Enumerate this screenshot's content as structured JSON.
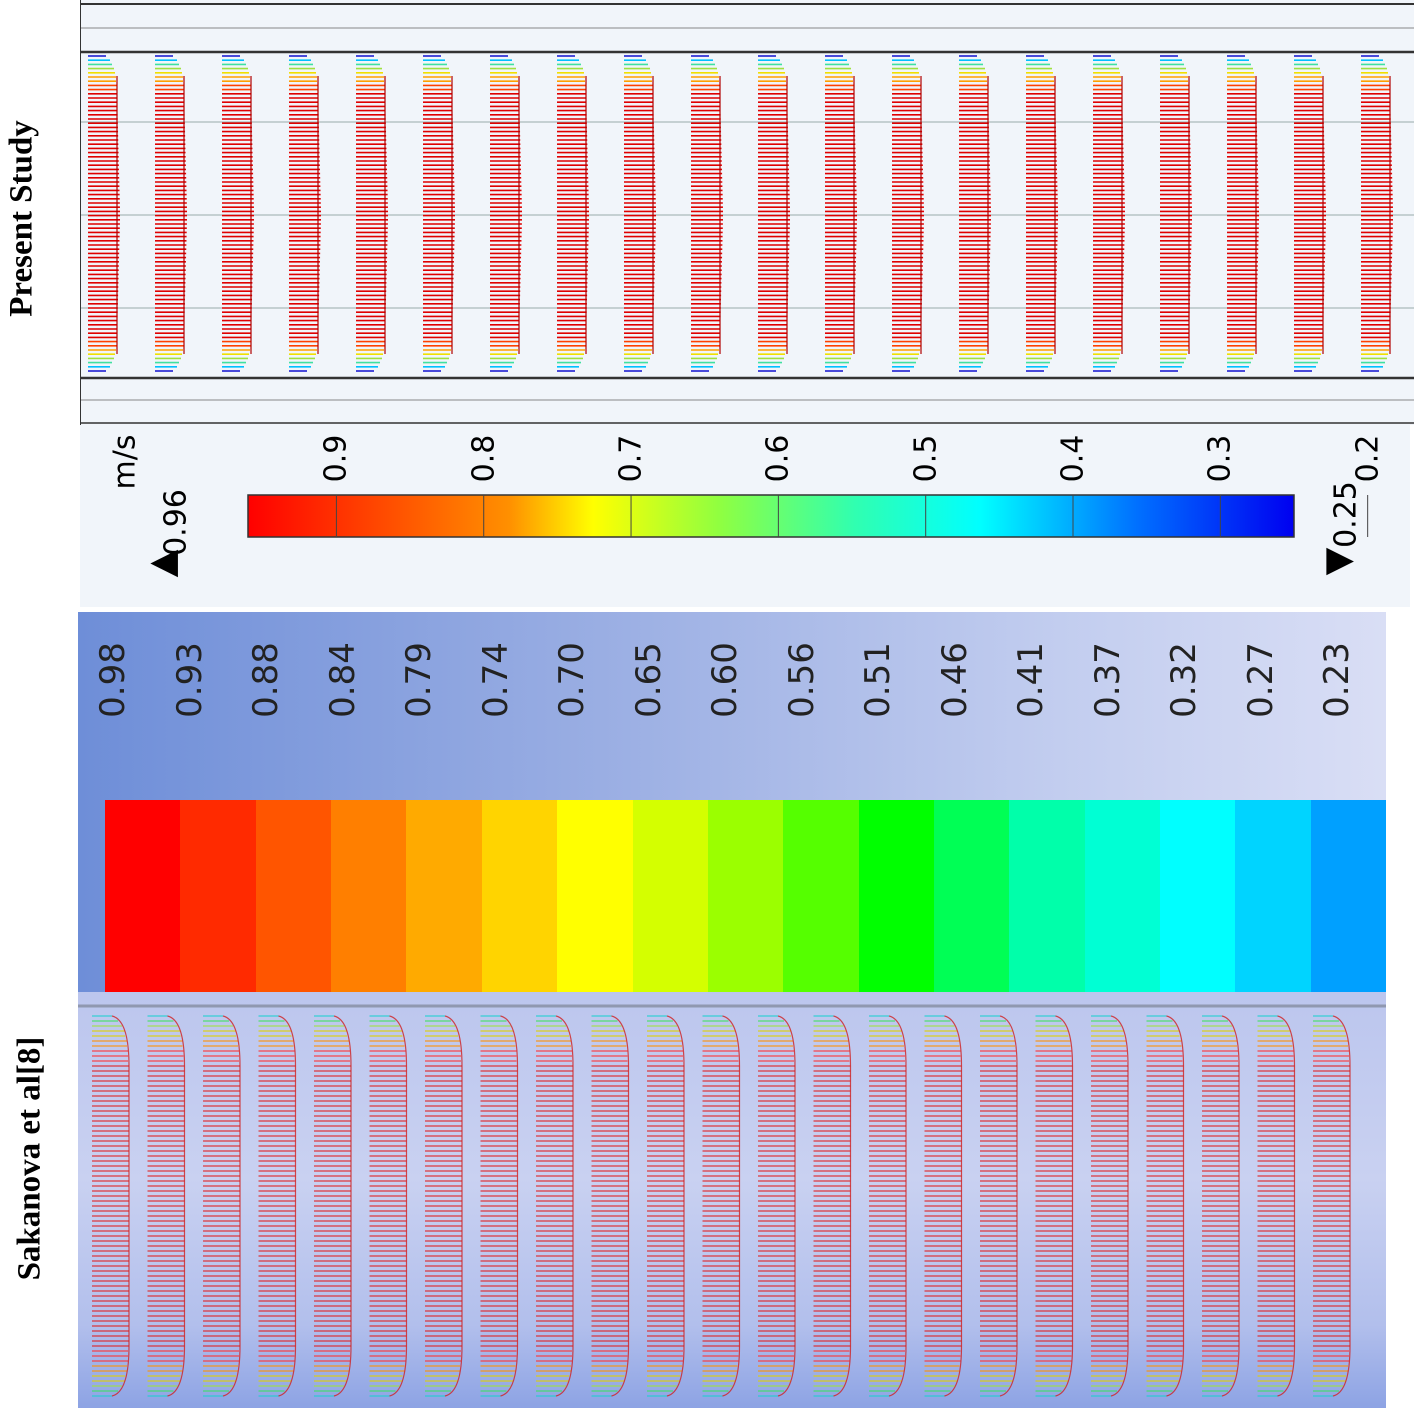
{
  "labels": {
    "present_study": "Present Study",
    "reference": "Sakanova et al[8]"
  },
  "top_legend": {
    "unit": "m/s",
    "max_value": "0.96",
    "min_value": "0.25",
    "max_marker": "▲",
    "min_marker": "▼",
    "ticks": [
      "0.9",
      "0.8",
      "0.7",
      "0.6",
      "0.5",
      "0.4",
      "0.3",
      "0.2"
    ],
    "gradient_colors": [
      "#ff0000",
      "#ff8000",
      "#ffff00",
      "#80ff40",
      "#00ffff",
      "#0080ff",
      "#0000ff"
    ]
  },
  "bottom_legend": {
    "ticks": [
      "0.98",
      "0.93",
      "0.88",
      "0.84",
      "0.79",
      "0.74",
      "0.70",
      "0.65",
      "0.60",
      "0.56",
      "0.51",
      "0.46",
      "0.41",
      "0.37",
      "0.32",
      "0.27",
      "0.23"
    ],
    "band_colors": [
      "#ff0000",
      "#ff2a00",
      "#ff5500",
      "#ff7f00",
      "#ffaa00",
      "#ffd400",
      "#ffff00",
      "#d4ff00",
      "#9bff00",
      "#55ff00",
      "#00ff00",
      "#00ff55",
      "#00ffaa",
      "#00ffd4",
      "#00ffff",
      "#00d4ff",
      "#00a0ff"
    ]
  },
  "profiles": {
    "top_count": 20,
    "bottom_count": 23,
    "top_colors": [
      "#1010d0",
      "#00c0ff",
      "#40e0a0",
      "#a0e040",
      "#f0e000",
      "#ffa000",
      "#ff4000",
      "#e00000"
    ],
    "bottom_colors": [
      "#20d0d0",
      "#40e060",
      "#a0e040",
      "#e0d000",
      "#ff9000",
      "#ff3030",
      "#e02020"
    ]
  }
}
